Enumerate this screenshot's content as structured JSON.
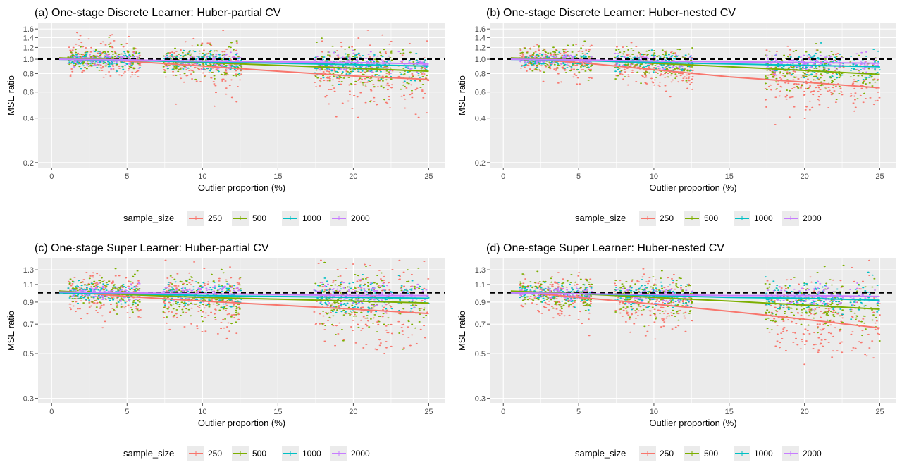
{
  "chart_data": [
    {
      "type": "scatter",
      "title": "(a) One-stage Discrete Learner: Huber-partial CV",
      "xlabel": "Outlier proportion (%)",
      "ylabel": "MSE ratio",
      "xlim": [
        -0.9,
        26.1
      ],
      "ylim": [
        0.185,
        1.75
      ],
      "yscale": "log",
      "xticks": [
        0,
        5,
        10,
        15,
        20,
        25
      ],
      "yticks": [
        0.2,
        0.4,
        0.6,
        0.8,
        1.0,
        1.2,
        1.4,
        1.6
      ],
      "ytick_labels": [
        "0.2",
        "0.4",
        "0.6",
        "0.8",
        "1.0",
        "1.2",
        "1.4",
        "1.6"
      ],
      "reference_line": 1.0,
      "legend_title": "sample_size",
      "series": [
        {
          "name": "250",
          "color": "#F8766D",
          "trend": [
            [
              0.5,
              1.02
            ],
            [
              5,
              0.97
            ],
            [
              10,
              0.9
            ],
            [
              15,
              0.83
            ],
            [
              20,
              0.77
            ],
            [
              25,
              0.73
            ]
          ],
          "spread": 0.22,
          "spread_growth": 0.012
        },
        {
          "name": "500",
          "color": "#7CAE00",
          "trend": [
            [
              0.5,
              1.02
            ],
            [
              5,
              0.99
            ],
            [
              10,
              0.95
            ],
            [
              15,
              0.91
            ],
            [
              20,
              0.87
            ],
            [
              25,
              0.83
            ]
          ],
          "spread": 0.14,
          "spread_growth": 0.008
        },
        {
          "name": "1000",
          "color": "#00BFC4",
          "trend": [
            [
              0.5,
              1.0
            ],
            [
              5,
              0.98
            ],
            [
              10,
              0.96
            ],
            [
              15,
              0.94
            ],
            [
              20,
              0.92
            ],
            [
              25,
              0.9
            ]
          ],
          "spread": 0.1,
          "spread_growth": 0.004
        },
        {
          "name": "2000",
          "color": "#C77CFF",
          "trend": [
            [
              0.5,
              1.0
            ],
            [
              5,
              0.99
            ],
            [
              10,
              0.97
            ],
            [
              15,
              0.96
            ],
            [
              20,
              0.95
            ],
            [
              25,
              0.93
            ]
          ],
          "spread": 0.07,
          "spread_growth": 0.003
        }
      ]
    },
    {
      "type": "scatter",
      "title": "(b) One-stage Discrete Learner: Huber-nested CV",
      "xlabel": "Outlier proportion (%)",
      "ylabel": "MSE ratio",
      "xlim": [
        -0.9,
        26.1
      ],
      "ylim": [
        0.185,
        1.75
      ],
      "yscale": "log",
      "xticks": [
        0,
        5,
        10,
        15,
        20,
        25
      ],
      "yticks": [
        0.2,
        0.4,
        0.6,
        0.8,
        1.0,
        1.2,
        1.4,
        1.6
      ],
      "ytick_labels": [
        "0.2",
        "0.4",
        "0.6",
        "0.8",
        "1.0",
        "1.2",
        "1.4",
        "1.6"
      ],
      "reference_line": 1.0,
      "legend_title": "sample_size",
      "series": [
        {
          "name": "250",
          "color": "#F8766D",
          "trend": [
            [
              0.5,
              1.02
            ],
            [
              5,
              0.95
            ],
            [
              10,
              0.85
            ],
            [
              15,
              0.76
            ],
            [
              20,
              0.7
            ],
            [
              25,
              0.64
            ]
          ],
          "spread": 0.18,
          "spread_growth": 0.01
        },
        {
          "name": "500",
          "color": "#7CAE00",
          "trend": [
            [
              0.5,
              1.02
            ],
            [
              5,
              0.99
            ],
            [
              10,
              0.94
            ],
            [
              15,
              0.89
            ],
            [
              20,
              0.84
            ],
            [
              25,
              0.79
            ]
          ],
          "spread": 0.13,
          "spread_growth": 0.008
        },
        {
          "name": "1000",
          "color": "#00BFC4",
          "trend": [
            [
              0.5,
              1.0
            ],
            [
              5,
              0.98
            ],
            [
              10,
              0.95
            ],
            [
              15,
              0.93
            ],
            [
              20,
              0.91
            ],
            [
              25,
              0.89
            ]
          ],
          "spread": 0.09,
          "spread_growth": 0.004
        },
        {
          "name": "2000",
          "color": "#C77CFF",
          "trend": [
            [
              0.5,
              1.0
            ],
            [
              5,
              0.99
            ],
            [
              10,
              0.97
            ],
            [
              15,
              0.96
            ],
            [
              20,
              0.95
            ],
            [
              25,
              0.94
            ]
          ],
          "spread": 0.06,
          "spread_growth": 0.003
        }
      ]
    },
    {
      "type": "scatter",
      "title": "(c) One-stage Super Learner: Huber-partial CV",
      "xlabel": "Outlier proportion (%)",
      "ylabel": "MSE ratio",
      "xlim": [
        -0.9,
        26.1
      ],
      "ylim": [
        0.285,
        1.48
      ],
      "yscale": "log",
      "xticks": [
        0,
        5,
        10,
        15,
        20,
        25
      ],
      "yticks": [
        0.3,
        0.5,
        0.7,
        0.9,
        1.1,
        1.3
      ],
      "ytick_labels": [
        "0.3",
        "0.5",
        "0.7",
        "0.9",
        "1.1",
        "1.3"
      ],
      "reference_line": 1.0,
      "legend_title": "sample_size",
      "series": [
        {
          "name": "250",
          "color": "#F8766D",
          "trend": [
            [
              0.5,
              1.02
            ],
            [
              5,
              0.96
            ],
            [
              10,
              0.91
            ],
            [
              15,
              0.87
            ],
            [
              20,
              0.83
            ],
            [
              25,
              0.79
            ]
          ],
          "spread": 0.22,
          "spread_growth": 0.01
        },
        {
          "name": "500",
          "color": "#7CAE00",
          "trend": [
            [
              0.5,
              1.02
            ],
            [
              5,
              0.98
            ],
            [
              10,
              0.95
            ],
            [
              15,
              0.93
            ],
            [
              20,
              0.91
            ],
            [
              25,
              0.89
            ]
          ],
          "spread": 0.15,
          "spread_growth": 0.007
        },
        {
          "name": "1000",
          "color": "#00BFC4",
          "trend": [
            [
              0.5,
              1.0
            ],
            [
              5,
              0.99
            ],
            [
              10,
              0.97
            ],
            [
              15,
              0.96
            ],
            [
              20,
              0.95
            ],
            [
              25,
              0.94
            ]
          ],
          "spread": 0.09,
          "spread_growth": 0.004
        },
        {
          "name": "2000",
          "color": "#C77CFF",
          "trend": [
            [
              0.5,
              1.01
            ],
            [
              5,
              1.0
            ],
            [
              10,
              0.99
            ],
            [
              15,
              0.98
            ],
            [
              20,
              0.97
            ],
            [
              25,
              0.97
            ]
          ],
          "spread": 0.06,
          "spread_growth": 0.003
        }
      ]
    },
    {
      "type": "scatter",
      "title": "(d) One-stage Super Learner: Huber-nested CV",
      "xlabel": "Outlier proportion (%)",
      "ylabel": "MSE ratio",
      "xlim": [
        -0.9,
        26.1
      ],
      "ylim": [
        0.285,
        1.48
      ],
      "yscale": "log",
      "xticks": [
        0,
        5,
        10,
        15,
        20,
        25
      ],
      "yticks": [
        0.3,
        0.5,
        0.7,
        0.9,
        1.1,
        1.3
      ],
      "ytick_labels": [
        "0.3",
        "0.5",
        "0.7",
        "0.9",
        "1.1",
        "1.3"
      ],
      "reference_line": 1.0,
      "legend_title": "sample_size",
      "series": [
        {
          "name": "250",
          "color": "#F8766D",
          "trend": [
            [
              0.5,
              1.02
            ],
            [
              5,
              0.95
            ],
            [
              10,
              0.88
            ],
            [
              15,
              0.81
            ],
            [
              20,
              0.74
            ],
            [
              25,
              0.67
            ]
          ],
          "spread": 0.18,
          "spread_growth": 0.01
        },
        {
          "name": "500",
          "color": "#7CAE00",
          "trend": [
            [
              0.5,
              1.02
            ],
            [
              5,
              0.99
            ],
            [
              10,
              0.95
            ],
            [
              15,
              0.91
            ],
            [
              20,
              0.87
            ],
            [
              25,
              0.83
            ]
          ],
          "spread": 0.13,
          "spread_growth": 0.007
        },
        {
          "name": "1000",
          "color": "#00BFC4",
          "trend": [
            [
              0.5,
              1.0
            ],
            [
              5,
              0.99
            ],
            [
              10,
              0.97
            ],
            [
              15,
              0.95
            ],
            [
              20,
              0.94
            ],
            [
              25,
              0.92
            ]
          ],
          "spread": 0.08,
          "spread_growth": 0.004
        },
        {
          "name": "2000",
          "color": "#C77CFF",
          "trend": [
            [
              0.5,
              1.0
            ],
            [
              5,
              0.99
            ],
            [
              10,
              0.98
            ],
            [
              15,
              0.97
            ],
            [
              20,
              0.97
            ],
            [
              25,
              0.96
            ]
          ],
          "spread": 0.05,
          "spread_growth": 0.003
        }
      ]
    }
  ],
  "style": {
    "panel_bg": "#EBEBEB",
    "grid_major": "#FFFFFF",
    "text_color": "#000000",
    "tick_color": "#4D4D4D",
    "tick_label_color": "#4D4D4D",
    "reference_line_color": "#000000"
  }
}
